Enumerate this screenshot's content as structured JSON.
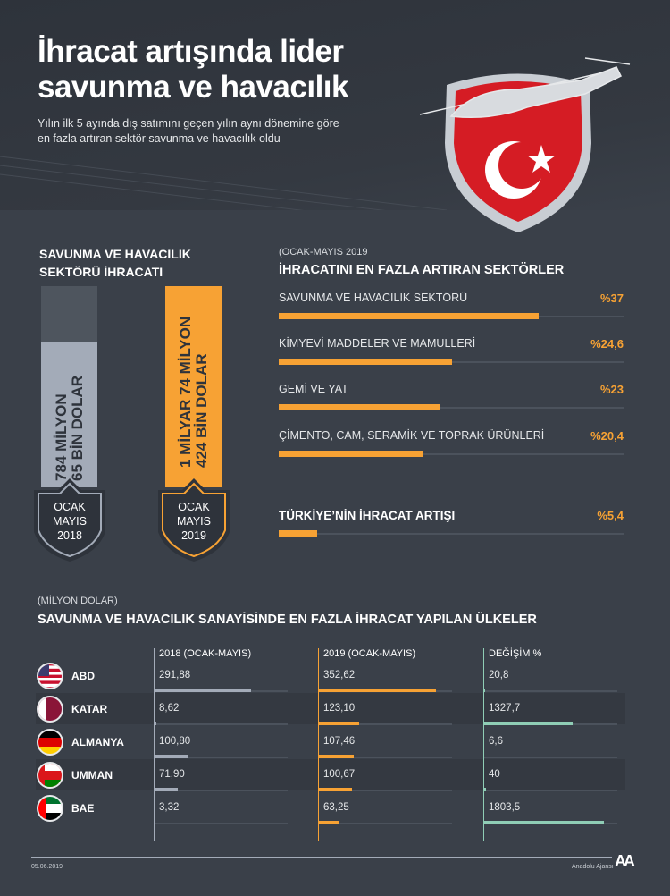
{
  "header": {
    "title_line1": "İhracat artışında lider",
    "title_line2": "savunma ve havacılık",
    "subtitle_line1": "Yılın ilk 5 ayında dış satımını geçen yılın aynı dönemine göre",
    "subtitle_line2": "en fazla artıran sektör savunma ve havacılık oldu"
  },
  "colors": {
    "bg": "#3a4049",
    "orange": "#f7a234",
    "gray": "#a3abb8",
    "teal": "#8fcdb5",
    "red": "#e30a17"
  },
  "left": {
    "title_line1": "SAVUNMA VE HAVACILIK",
    "title_line2": "SEKTÖRÜ İHRACATI",
    "bars": [
      {
        "line1": "784 MİLYON",
        "line2": "65 BİN DOLAR",
        "badge1": "OCAK",
        "badge2": "MAYIS",
        "badge3": "2018",
        "value_usd": 784065000
      },
      {
        "line1": "1 MİLYAR 74 MİLYON",
        "line2": "424 BİN DOLAR",
        "badge1": "OCAK",
        "badge2": "MAYIS",
        "badge3": "2019",
        "value_usd": 1074424000
      }
    ]
  },
  "chart_data": [
    {
      "type": "bar",
      "title": "İHRACATINI EN FAZLA ARTIRAN SEKTÖRLER",
      "subtitle": "(OCAK-MAYIS 2019",
      "categories": [
        "SAVUNMA VE HAVACILIK SEKTÖRÜ",
        "KİMYEVİ MADDELER VE MAMULLERİ",
        "GEMİ VE YAT",
        "ÇİMENTO, CAM, SERAMİK VE TOPRAK ÜRÜNLERİ",
        "TÜRKİYE’NİN İHRACAT ARTIŞI"
      ],
      "values": [
        37,
        24.6,
        23,
        20.4,
        5.4
      ],
      "labels": [
        "%37",
        "%24,6",
        "%23",
        "%20,4",
        "%5,4"
      ],
      "xlim": [
        0,
        49
      ]
    },
    {
      "type": "table",
      "unit": "(MİLYON DOLAR)",
      "title": "SAVUNMA VE HAVACILIK SANAYİSİNDE EN FAZLA İHRACAT YAPILAN ÜLKELER",
      "columns": [
        "2018 (OCAK-MAYIS)",
        "2019 (OCAK-MAYIS)",
        "DEĞİŞİM %"
      ],
      "rows": [
        {
          "country": "ABD",
          "flag": "us-flag",
          "v2018": 291.88,
          "v2019": 352.62,
          "change": 20.8,
          "t2018": "291,88",
          "t2019": "352,62",
          "tchange": "20,8"
        },
        {
          "country": "KATAR",
          "flag": "qatar-flag",
          "v2018": 8.62,
          "v2019": 123.1,
          "change": 1327.7,
          "t2018": "8,62",
          "t2019": "123,10",
          "tchange": "1327,7"
        },
        {
          "country": "ALMANYA",
          "flag": "germany-flag",
          "v2018": 100.8,
          "v2019": 107.46,
          "change": 6.6,
          "t2018": "100,80",
          "t2019": "107,46",
          "tchange": "6,6"
        },
        {
          "country": "UMMAN",
          "flag": "oman-flag",
          "v2018": 71.9,
          "v2019": 100.67,
          "change": 40,
          "t2018": "71,90",
          "t2019": "100,67",
          "tchange": "40"
        },
        {
          "country": "BAE",
          "flag": "uae-flag",
          "v2018": 3.32,
          "v2019": 63.25,
          "change": 1803.5,
          "t2018": "3,32",
          "t2019": "63,25",
          "tchange": "1803,5"
        }
      ],
      "scale_max": {
        "amount": 400,
        "change": 2000
      }
    }
  ],
  "footer": {
    "date": "05.06.2019",
    "agency": "Anadolu Ajansı",
    "logo": "AA"
  }
}
